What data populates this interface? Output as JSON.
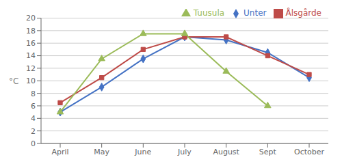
{
  "chart_data": {
    "type": "line",
    "categories": [
      "April",
      "May",
      "June",
      "July",
      "August",
      "Sept",
      "October"
    ],
    "series": [
      {
        "name": "Unter",
        "color": "#4472C4",
        "marker": "diamond",
        "values": [
          5.0,
          9.0,
          13.5,
          17.0,
          16.5,
          14.5,
          10.5
        ]
      },
      {
        "name": "Ålsgårde",
        "color": "#BE4B48",
        "marker": "square",
        "values": [
          6.5,
          10.5,
          15.0,
          17.0,
          17.0,
          14.0,
          11.0
        ]
      },
      {
        "name": "Tuusula",
        "color": "#9BBB59",
        "marker": "triangle",
        "values": [
          5.0,
          13.5,
          17.5,
          17.5,
          11.5,
          6.0,
          null
        ]
      }
    ],
    "ylabel": "°C",
    "ylim": [
      0,
      20
    ],
    "yticks": [
      0,
      2,
      4,
      6,
      8,
      10,
      12,
      14,
      16,
      18,
      20
    ],
    "grid": true,
    "legend": "upper right"
  }
}
